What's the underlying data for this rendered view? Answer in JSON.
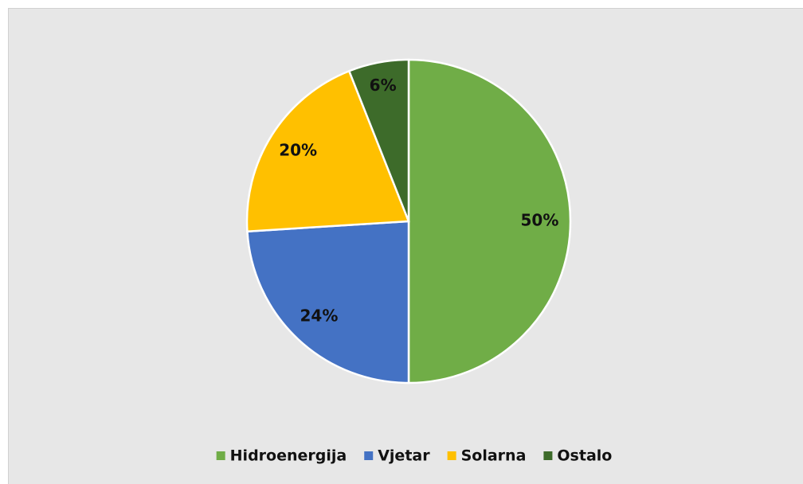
{
  "chart_data": {
    "type": "pie",
    "categories": [
      "Hidroenergija",
      "Vjetar",
      "Solarna",
      "Ostalo"
    ],
    "values": [
      50,
      24,
      20,
      6
    ],
    "value_labels": [
      "50%",
      "24%",
      "20%",
      "6%"
    ],
    "colors": [
      "#70ad47",
      "#4472c4",
      "#ffc000",
      "#3d6b2a"
    ],
    "legend": "bottom"
  }
}
